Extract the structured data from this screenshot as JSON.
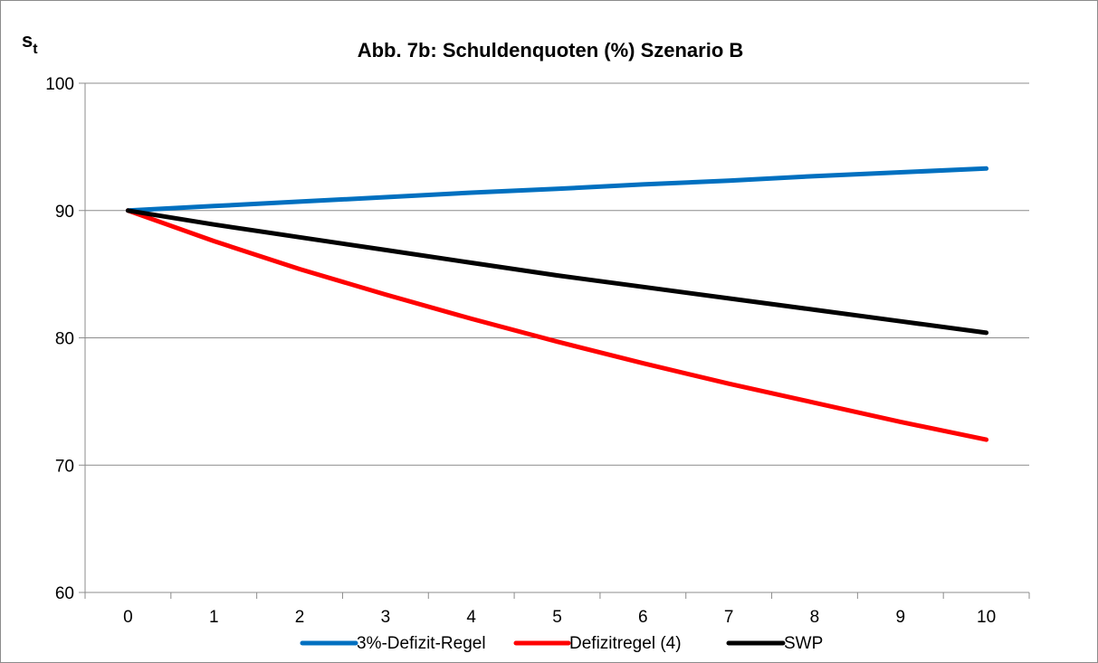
{
  "chart_data": {
    "type": "line",
    "title": "Abb. 7b: Schuldenquoten (%) Szenario B",
    "ylabel_main": "s",
    "ylabel_sub": "t",
    "xlabel": "",
    "x": [
      0,
      1,
      2,
      3,
      4,
      5,
      6,
      7,
      8,
      9,
      10
    ],
    "ylim": [
      60,
      100
    ],
    "yticks": [
      60,
      70,
      80,
      90,
      100
    ],
    "grid": "horizontal",
    "legend_position": "bottom",
    "series": [
      {
        "name": "3%-Defizit-Regel",
        "color": "#0070c0",
        "values": [
          90,
          90.35,
          90.7,
          91.05,
          91.4,
          91.7,
          92.05,
          92.35,
          92.7,
          93.0,
          93.3
        ]
      },
      {
        "name": "Defizitregel (4)",
        "color": "#ff0000",
        "values": [
          90,
          87.6,
          85.4,
          83.4,
          81.5,
          79.7,
          78.0,
          76.4,
          74.9,
          73.4,
          72.0
        ]
      },
      {
        "name": "SWP",
        "color": "#000000",
        "values": [
          90,
          88.9,
          87.9,
          86.9,
          85.9,
          84.9,
          84.0,
          83.1,
          82.2,
          81.3,
          80.4
        ]
      }
    ]
  }
}
